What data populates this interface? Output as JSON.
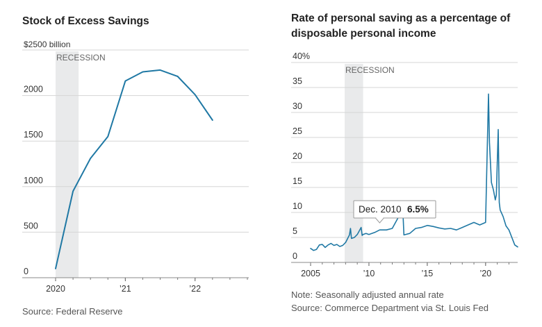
{
  "chart_data": [
    {
      "type": "line",
      "title": "Stock of Excess Savings",
      "y_unit_label": "$2500 billion",
      "recession_label": "RECESSION",
      "recession_period": [
        2020.0,
        2020.33
      ],
      "xlim": [
        2020.0,
        2022.75
      ],
      "ylim": [
        0,
        2500
      ],
      "yticks": [
        0,
        500,
        1000,
        1500,
        2000
      ],
      "ytick_labels": [
        "0",
        "500",
        "1000",
        "1500",
        "2000"
      ],
      "xticks": [
        2020,
        2021,
        2022
      ],
      "xtick_labels": [
        "2020",
        "’21",
        "’22"
      ],
      "grid": true,
      "color": "#1f78a4",
      "series": [
        {
          "x": [
            2020.0,
            2020.25,
            2020.5,
            2020.75,
            2021.0,
            2021.25,
            2021.5,
            2021.75,
            2022.0,
            2022.25
          ],
          "values": [
            100,
            950,
            1310,
            1550,
            2160,
            2260,
            2280,
            2210,
            2010,
            1730
          ]
        }
      ],
      "source": "Source: Federal Reserve"
    },
    {
      "type": "line",
      "title": "Rate of personal saving as a percentage of disposable personal income",
      "recession_label": "RECESSION",
      "recession_period": [
        2007.92,
        2009.5
      ],
      "xlim": [
        2005,
        2022.75
      ],
      "ylim": [
        0,
        40
      ],
      "yticks": [
        0,
        5,
        10,
        15,
        20,
        25,
        30,
        35,
        40
      ],
      "ytick_labels": [
        "0",
        "5",
        "10",
        "15",
        "20",
        "25",
        "30",
        "35",
        "40%"
      ],
      "xticks": [
        2005,
        2010,
        2015,
        2020
      ],
      "xtick_labels": [
        "2005",
        "’10",
        "’15",
        "’20"
      ],
      "grid": true,
      "color": "#1f78a4",
      "annotation": {
        "label": "Dec. 2010",
        "value_label": "6.5%",
        "x": 2010.92,
        "y": 6.5
      },
      "series": [
        {
          "x": [
            2005.0,
            2005.25,
            2005.5,
            2005.75,
            2006.0,
            2006.25,
            2006.5,
            2006.75,
            2007.0,
            2007.25,
            2007.5,
            2007.75,
            2008.0,
            2008.33,
            2008.42,
            2008.5,
            2008.75,
            2009.0,
            2009.33,
            2009.42,
            2009.5,
            2009.75,
            2010.0,
            2010.5,
            2010.92,
            2011.5,
            2012.0,
            2012.75,
            2012.92,
            2013.0,
            2013.5,
            2014.0,
            2014.5,
            2015.0,
            2015.5,
            2016.0,
            2016.5,
            2017.0,
            2017.5,
            2018.0,
            2018.5,
            2019.0,
            2019.5,
            2020.0,
            2020.25,
            2020.33,
            2020.5,
            2020.67,
            2020.83,
            2020.92,
            2021.0,
            2021.08,
            2021.17,
            2021.25,
            2021.5,
            2021.75,
            2022.0,
            2022.25,
            2022.5,
            2022.75
          ],
          "values": [
            2.8,
            2.4,
            2.6,
            3.5,
            3.6,
            3.0,
            3.5,
            3.8,
            3.4,
            3.6,
            3.2,
            3.4,
            4.0,
            5.5,
            6.8,
            4.8,
            5.0,
            5.6,
            7.0,
            5.4,
            5.6,
            5.8,
            5.6,
            6.0,
            6.5,
            6.5,
            6.8,
            10.0,
            9.6,
            5.5,
            5.8,
            6.8,
            7.0,
            7.4,
            7.2,
            6.9,
            6.7,
            6.8,
            6.5,
            7.0,
            7.5,
            8.0,
            7.5,
            8.0,
            33.7,
            24.0,
            16.0,
            14.5,
            12.5,
            13.5,
            19.8,
            26.6,
            12.0,
            10.5,
            9.2,
            7.3,
            6.5,
            5.0,
            3.5,
            3.1
          ]
        }
      ],
      "notes": [
        "Note: Seasonally adjusted annual rate",
        "Source: Commerce Department via St. Louis Fed"
      ]
    }
  ]
}
